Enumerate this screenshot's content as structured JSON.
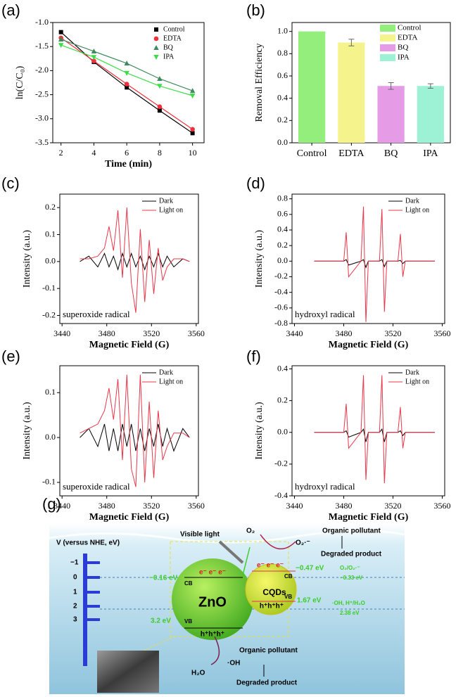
{
  "chart_data": [
    {
      "type": "line",
      "panel_label": "(a)",
      "x_label": "Time (min)",
      "y_label": "ln(C/C₀)",
      "legend": "upper right",
      "x": [
        2,
        4,
        6,
        8,
        10
      ],
      "series": [
        {
          "name": "Control",
          "color": "#000000",
          "marker": "square",
          "values": [
            -1.2,
            -1.82,
            -2.35,
            -2.83,
            -3.3
          ]
        },
        {
          "name": "EDTA",
          "color": "#f0303c",
          "marker": "circle",
          "values": [
            -1.32,
            -1.8,
            -2.28,
            -2.75,
            -3.22
          ]
        },
        {
          "name": "BQ",
          "color": "#3f8a5f",
          "marker": "triangle",
          "values": [
            -1.35,
            -1.6,
            -1.85,
            -2.17,
            -2.42
          ]
        },
        {
          "name": "IPA",
          "color": "#3ddc4a",
          "marker": "triangle-down",
          "values": [
            -1.47,
            -1.72,
            -2.05,
            -2.32,
            -2.52
          ]
        }
      ],
      "xlim": [
        1.5,
        10.7
      ],
      "xticks": [
        2,
        4,
        6,
        8,
        10
      ],
      "ylim": [
        -3.5,
        -1.0
      ],
      "yticks": [
        {
          "value": -1.0,
          "label": "-1.0"
        },
        -1.5,
        {
          "value": -2.0,
          "label": "-2.0"
        },
        -2.5,
        {
          "value": -3.0,
          "label": "-3.0"
        },
        -3.5
      ]
    },
    {
      "type": "bar",
      "panel_label": "(b)",
      "y_label": "Removal Efficiency",
      "legend": "upper right",
      "categories": [
        "Control",
        "EDTA",
        "BQ",
        "IPA"
      ],
      "values": [
        1.0,
        0.9,
        0.51,
        0.51
      ],
      "errors": [
        null,
        0.03,
        0.03,
        0.02
      ],
      "colors": [
        "#93ee7c",
        "#f5f48c",
        "#e59be6",
        "#9df2d6"
      ],
      "ylim": [
        0,
        1.08
      ],
      "yticks": [
        {
          "value": 0,
          "label": "0.0"
        },
        0.2,
        0.4,
        0.6,
        0.8,
        {
          "value": 1.0,
          "label": "1.0"
        }
      ]
    },
    {
      "type": "line",
      "panel_label": "(c)",
      "x_label": "Magnetic Field (G)",
      "y_label": "Intensity (a.u.)",
      "annotation": "superoxide radical",
      "legend": "upper right",
      "x": [
        3456,
        3464,
        3472,
        3478,
        3482,
        3486,
        3490,
        3494,
        3498,
        3502,
        3506,
        3510,
        3514,
        3518,
        3522,
        3526,
        3530,
        3534,
        3540,
        3548,
        3554
      ],
      "series": [
        {
          "name": "Dark",
          "color": "#000000",
          "values": [
            0.0,
            0.02,
            -0.02,
            0.03,
            -0.02,
            0.02,
            -0.03,
            0.03,
            -0.02,
            0.03,
            -0.02,
            0.02,
            -0.03,
            0.02,
            -0.02,
            0.03,
            -0.02,
            0.02,
            -0.02,
            0.01,
            0.0
          ]
        },
        {
          "name": "Light on",
          "color": "#e8374a",
          "values": [
            0.01,
            0.01,
            0.02,
            0.05,
            0.13,
            0.04,
            0.19,
            -0.06,
            0.2,
            -0.08,
            -0.19,
            0.12,
            -0.15,
            0.08,
            -0.12,
            0.05,
            -0.07,
            -0.02,
            0.01,
            0.01,
            0.0
          ]
        }
      ],
      "xlim": [
        3438,
        3562
      ],
      "xticks": [
        3440,
        3480,
        3520,
        3560
      ],
      "ylim": [
        -0.23,
        0.25
      ],
      "yticks": [
        -0.2,
        -0.1,
        {
          "value": 0,
          "label": "0.0"
        },
        0.1,
        0.2
      ]
    },
    {
      "type": "line",
      "panel_label": "(d)",
      "x_label": "Magnetic Field (G)",
      "y_label": "Intensity (a.u.)",
      "annotation": "hydroxyl radical",
      "legend": "upper right",
      "x": [
        3456,
        3470,
        3480,
        3482,
        3484,
        3494,
        3496,
        3498,
        3500,
        3509,
        3511,
        3513,
        3515,
        3524,
        3526,
        3528,
        3530,
        3540,
        3554
      ],
      "series": [
        {
          "name": "Dark",
          "color": "#000000",
          "values": [
            0,
            0,
            0,
            0.02,
            -0.05,
            0,
            0.02,
            -0.08,
            0,
            0,
            0.02,
            -0.07,
            0,
            0,
            0.01,
            -0.03,
            0,
            0,
            0
          ]
        },
        {
          "name": "Light on",
          "color": "#e8374a",
          "values": [
            0,
            0,
            0,
            0.37,
            -0.2,
            0,
            0.7,
            -0.78,
            0,
            0,
            0.67,
            -0.65,
            0,
            0,
            0.35,
            -0.2,
            0,
            0,
            0
          ]
        }
      ],
      "xlim": [
        3438,
        3562
      ],
      "xticks": [
        3440,
        3480,
        3520,
        3560
      ],
      "ylim": [
        -0.8,
        0.86
      ],
      "yticks": [
        -0.8,
        -0.6,
        -0.4,
        -0.2,
        {
          "value": 0,
          "label": "0.0"
        },
        0.2,
        0.4,
        0.6,
        0.8
      ]
    },
    {
      "type": "line",
      "panel_label": "(e)",
      "x_label": "Magnetic Field (G)",
      "y_label": "Intensity (a.u.)",
      "annotation": "superoxide radical",
      "legend": "upper right",
      "x": [
        3456,
        3464,
        3472,
        3478,
        3482,
        3486,
        3490,
        3494,
        3498,
        3502,
        3506,
        3510,
        3514,
        3518,
        3522,
        3526,
        3530,
        3534,
        3540,
        3548,
        3554
      ],
      "series": [
        {
          "name": "Dark",
          "color": "#000000",
          "values": [
            0.0,
            0.02,
            -0.02,
            0.03,
            -0.03,
            0.02,
            -0.03,
            0.03,
            -0.02,
            0.03,
            -0.03,
            0.02,
            -0.03,
            0.02,
            -0.02,
            0.03,
            -0.02,
            0.02,
            -0.03,
            0.02,
            0.0
          ]
        },
        {
          "name": "Light on",
          "color": "#e8374a",
          "values": [
            0.01,
            0.02,
            0.03,
            0.06,
            0.11,
            0.04,
            0.13,
            -0.05,
            0.14,
            -0.07,
            -0.11,
            0.14,
            -0.1,
            0.08,
            -0.09,
            0.06,
            -0.05,
            -0.02,
            0.01,
            0.01,
            0.0
          ]
        }
      ],
      "xlim": [
        3438,
        3562
      ],
      "xticks": [
        3440,
        3480,
        3520,
        3560
      ],
      "ylim": [
        -0.13,
        0.16
      ],
      "yticks": [
        -0.1,
        {
          "value": 0,
          "label": "0.0"
        },
        0.1
      ]
    },
    {
      "type": "line",
      "panel_label": "(f)",
      "x_label": "Magnetic Field (G)",
      "y_label": "Intensity (a.u.)",
      "annotation": "hydroxyl radical",
      "legend": "upper right",
      "x": [
        3456,
        3470,
        3480,
        3482,
        3484,
        3494,
        3496,
        3498,
        3500,
        3509,
        3511,
        3513,
        3515,
        3524,
        3526,
        3528,
        3530,
        3540,
        3554
      ],
      "series": [
        {
          "name": "Dark",
          "color": "#000000",
          "values": [
            0,
            0,
            0,
            0.01,
            -0.03,
            0,
            0.02,
            -0.06,
            0,
            0,
            0.02,
            -0.06,
            0,
            0,
            0.01,
            -0.02,
            0,
            0,
            0
          ]
        },
        {
          "name": "Light on",
          "color": "#e8374a",
          "values": [
            0,
            0,
            0,
            0.18,
            -0.1,
            0,
            0.36,
            -0.3,
            0,
            0,
            0.36,
            -0.32,
            0,
            0,
            0.16,
            -0.1,
            0,
            0,
            0
          ]
        }
      ],
      "xlim": [
        3438,
        3562
      ],
      "xticks": [
        3440,
        3480,
        3520,
        3560
      ],
      "ylim": [
        -0.4,
        0.42
      ],
      "yticks": [
        -0.4,
        -0.2,
        {
          "value": 0,
          "label": "0.0"
        },
        0.2,
        0.4
      ]
    }
  ],
  "diagram": {
    "panel_label": "(g)",
    "axis_title": "V (versus NHE, eV)",
    "axis_ticks": [
      "−1",
      "0",
      "1",
      "2",
      "3"
    ],
    "light": "Visible light",
    "o2": "O₂",
    "superoxide": "O₂·⁻",
    "top_pollutant": "Organic pollutant",
    "top_product": "Degraded product",
    "zno": "ZnO",
    "zno_cb": "CB",
    "zno_vb": "VB",
    "zno_electrons": "e⁻ e⁻ e⁻",
    "zno_holes": "h⁺h⁺h⁺",
    "zno_cb_energy": "−0.16 eV",
    "zno_vb_energy": "3.2 eV",
    "cqds": "CQDs",
    "cqds_cb": "CB",
    "cqds_vb": "VB",
    "cqds_electrons": "e⁻ e⁻ e⁻",
    "cqds_holes": "h⁺h⁺h⁺",
    "cqds_cb_energy": "−0.47 eV",
    "cqds_vb_energy": "1.67 eV",
    "o2_couple": "O₂/O₂·⁻",
    "o2_potential": "−0.33 eV",
    "oh_couple": "·OH, H⁺/H₂O",
    "oh_potential": "2.38 eV",
    "bottom_pollutant": "Organic pollutant",
    "hydroxyl": "·OH",
    "water": "H₂O",
    "bottom_product": "Degraded product"
  }
}
